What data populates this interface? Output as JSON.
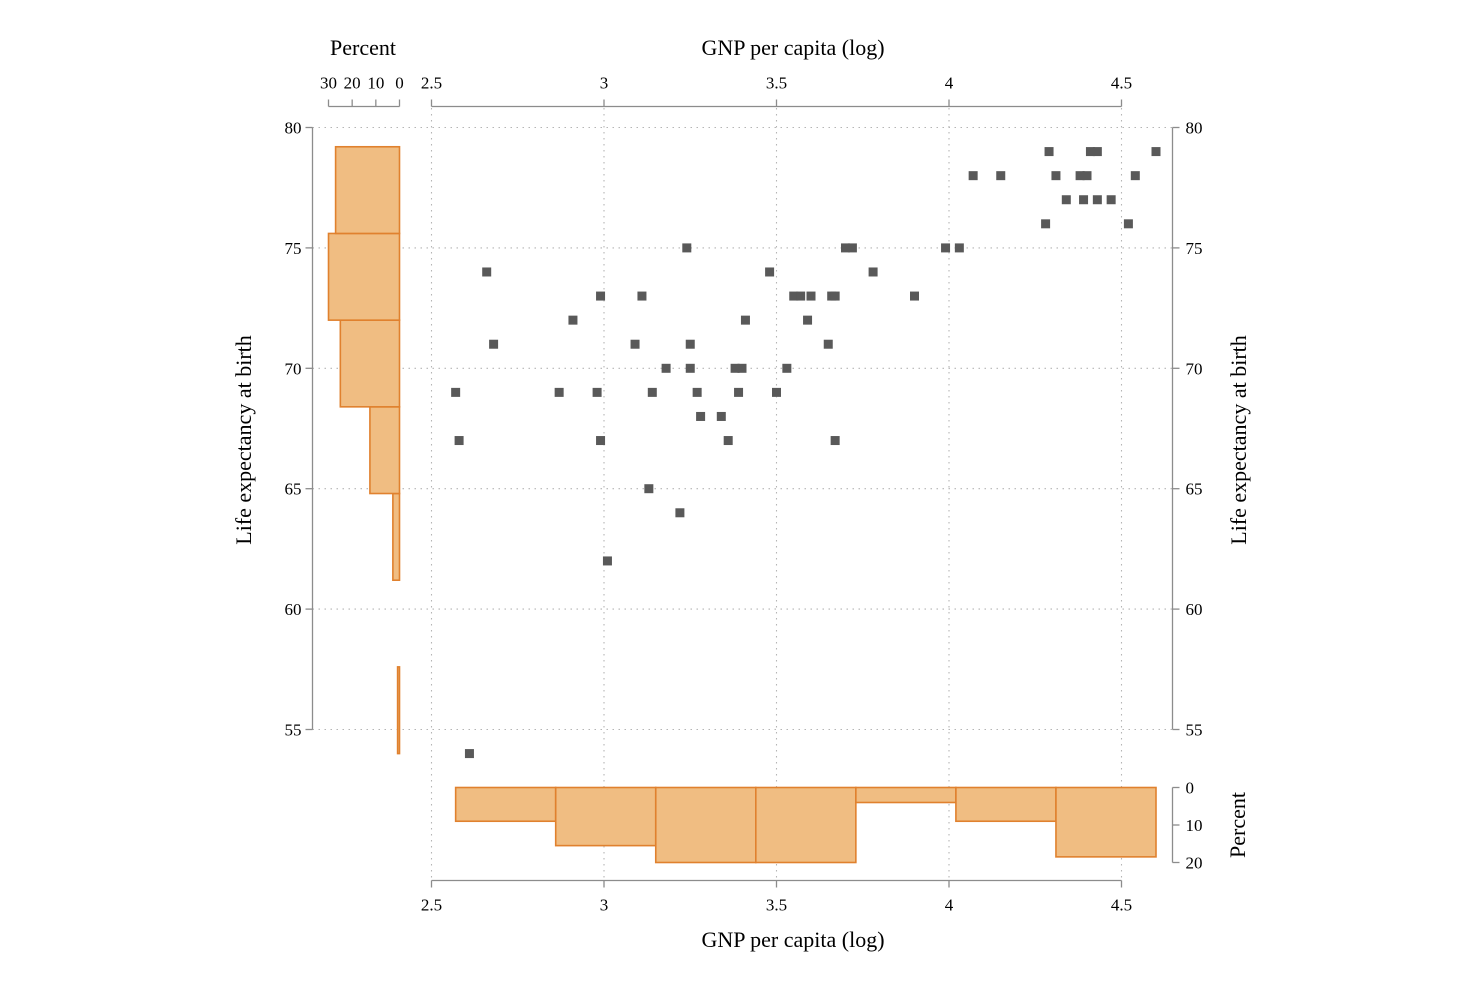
{
  "chart_data": {
    "type": "scatter",
    "title": "",
    "xlabel": "GNP per capita (log)",
    "ylabel": "Life expectancy at birth",
    "xlim": [
      2.5,
      4.5
    ],
    "ylim": [
      55,
      80
    ],
    "x_ticks": [
      "2.5",
      "3",
      "3.5",
      "4",
      "4.5"
    ],
    "y_ticks": [
      "55",
      "60",
      "65",
      "70",
      "75",
      "80"
    ],
    "grid": true,
    "colors": {
      "points": "#595959",
      "histogram_fill": "#f0bd82",
      "histogram_edge": "#e0812e",
      "axes": "#8c8c8c"
    },
    "points": [
      {
        "x": 2.57,
        "y": 69
      },
      {
        "x": 2.58,
        "y": 67
      },
      {
        "x": 2.61,
        "y": 54
      },
      {
        "x": 2.66,
        "y": 74
      },
      {
        "x": 2.68,
        "y": 71
      },
      {
        "x": 2.87,
        "y": 69
      },
      {
        "x": 2.91,
        "y": 72
      },
      {
        "x": 2.98,
        "y": 69
      },
      {
        "x": 2.99,
        "y": 73
      },
      {
        "x": 2.99,
        "y": 67
      },
      {
        "x": 3.01,
        "y": 62
      },
      {
        "x": 3.09,
        "y": 71
      },
      {
        "x": 3.11,
        "y": 73
      },
      {
        "x": 3.13,
        "y": 65
      },
      {
        "x": 3.14,
        "y": 69
      },
      {
        "x": 3.18,
        "y": 70
      },
      {
        "x": 3.22,
        "y": 64
      },
      {
        "x": 3.24,
        "y": 75
      },
      {
        "x": 3.25,
        "y": 71
      },
      {
        "x": 3.25,
        "y": 70
      },
      {
        "x": 3.27,
        "y": 69
      },
      {
        "x": 3.28,
        "y": 68
      },
      {
        "x": 3.34,
        "y": 68
      },
      {
        "x": 3.36,
        "y": 67
      },
      {
        "x": 3.38,
        "y": 70
      },
      {
        "x": 3.39,
        "y": 69
      },
      {
        "x": 3.4,
        "y": 70
      },
      {
        "x": 3.41,
        "y": 72
      },
      {
        "x": 3.48,
        "y": 74
      },
      {
        "x": 3.5,
        "y": 69
      },
      {
        "x": 3.53,
        "y": 70
      },
      {
        "x": 3.55,
        "y": 73
      },
      {
        "x": 3.57,
        "y": 73
      },
      {
        "x": 3.59,
        "y": 72
      },
      {
        "x": 3.6,
        "y": 73
      },
      {
        "x": 3.65,
        "y": 71
      },
      {
        "x": 3.66,
        "y": 73
      },
      {
        "x": 3.67,
        "y": 67
      },
      {
        "x": 3.67,
        "y": 73
      },
      {
        "x": 3.7,
        "y": 75
      },
      {
        "x": 3.72,
        "y": 75
      },
      {
        "x": 3.78,
        "y": 74
      },
      {
        "x": 3.9,
        "y": 73
      },
      {
        "x": 3.99,
        "y": 75
      },
      {
        "x": 4.03,
        "y": 75
      },
      {
        "x": 4.07,
        "y": 78
      },
      {
        "x": 4.15,
        "y": 78
      },
      {
        "x": 4.28,
        "y": 76
      },
      {
        "x": 4.29,
        "y": 79
      },
      {
        "x": 4.31,
        "y": 78
      },
      {
        "x": 4.34,
        "y": 77
      },
      {
        "x": 4.38,
        "y": 78
      },
      {
        "x": 4.39,
        "y": 77
      },
      {
        "x": 4.4,
        "y": 78
      },
      {
        "x": 4.41,
        "y": 79
      },
      {
        "x": 4.43,
        "y": 77
      },
      {
        "x": 4.43,
        "y": 79
      },
      {
        "x": 4.47,
        "y": 77
      },
      {
        "x": 4.52,
        "y": 76
      },
      {
        "x": 4.54,
        "y": 78
      },
      {
        "x": 4.6,
        "y": 79
      }
    ],
    "histogram_x": {
      "label": "Percent",
      "ticks": [
        "0",
        "10",
        "20"
      ],
      "range": [
        0,
        20
      ],
      "bins": [
        {
          "from": 2.57,
          "to": 2.86,
          "percent": 9
        },
        {
          "from": 2.86,
          "to": 3.15,
          "percent": 15.5
        },
        {
          "from": 3.15,
          "to": 3.44,
          "percent": 20
        },
        {
          "from": 3.44,
          "to": 3.73,
          "percent": 20
        },
        {
          "from": 3.73,
          "to": 4.02,
          "percent": 4
        },
        {
          "from": 4.02,
          "to": 4.31,
          "percent": 9
        },
        {
          "from": 4.31,
          "to": 4.6,
          "percent": 18.5
        }
      ]
    },
    "histogram_y": {
      "label": "Percent",
      "ticks": [
        "30",
        "20",
        "10",
        "0"
      ],
      "range": [
        0,
        30
      ],
      "bins": [
        {
          "from": 54,
          "to": 57.6,
          "percent": 0.8
        },
        {
          "from": 61.2,
          "to": 64.8,
          "percent": 2.8
        },
        {
          "from": 64.8,
          "to": 68.4,
          "percent": 12.5
        },
        {
          "from": 68.4,
          "to": 72,
          "percent": 25
        },
        {
          "from": 72,
          "to": 75.6,
          "percent": 30
        },
        {
          "from": 75.6,
          "to": 79.2,
          "percent": 27
        }
      ]
    }
  }
}
